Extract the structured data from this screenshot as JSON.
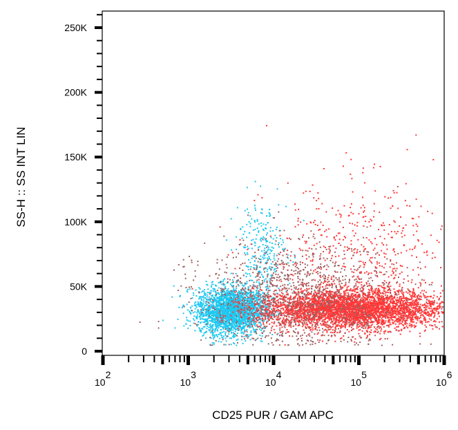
{
  "chart_data": {
    "type": "scatter",
    "title": "",
    "xlabel": "CD25 PUR / GAM APC",
    "ylabel": "SS-H :: SS INT LIN",
    "x_scale": "log",
    "xlim": [
      100,
      1000000
    ],
    "ylim": [
      0,
      262144
    ],
    "x_ticks": [
      {
        "base": "10",
        "exp": "2",
        "value": 100
      },
      {
        "base": "10",
        "exp": "3",
        "value": 1000
      },
      {
        "base": "10",
        "exp": "4",
        "value": 10000
      },
      {
        "base": "10",
        "exp": "5",
        "value": 100000
      },
      {
        "base": "10",
        "exp": "6",
        "value": 1000000
      }
    ],
    "y_ticks": [
      {
        "label": "0",
        "value": 0
      },
      {
        "label": "50K",
        "value": 50000
      },
      {
        "label": "100K",
        "value": 100000
      },
      {
        "label": "150K",
        "value": 150000
      },
      {
        "label": "200K",
        "value": 200000
      },
      {
        "label": "250K",
        "value": 250000
      }
    ],
    "grid": false,
    "populations": [
      {
        "color": "#1ec8f0",
        "count": 2600,
        "x_log_center": 3.5,
        "x_log_sd": 0.2,
        "y_center": 32000,
        "y_sd": 9000
      },
      {
        "color": "#1ec8f0",
        "count": 300,
        "x_log_center": 3.85,
        "x_log_sd": 0.15,
        "y_center": 75000,
        "y_sd": 22000
      },
      {
        "color": "#ff3838",
        "count": 4200,
        "x_log_center": 4.9,
        "x_log_sd": 0.55,
        "y_center": 33000,
        "y_sd": 7500
      },
      {
        "color": "#ff3838",
        "count": 500,
        "x_log_center": 5.0,
        "x_log_sd": 0.55,
        "y_center": 75000,
        "y_sd": 28000
      },
      {
        "color": "#a06060",
        "count": 1200,
        "x_log_center": 4.3,
        "x_log_sd": 0.6,
        "y_center": 42000,
        "y_sd": 20000
      }
    ]
  }
}
